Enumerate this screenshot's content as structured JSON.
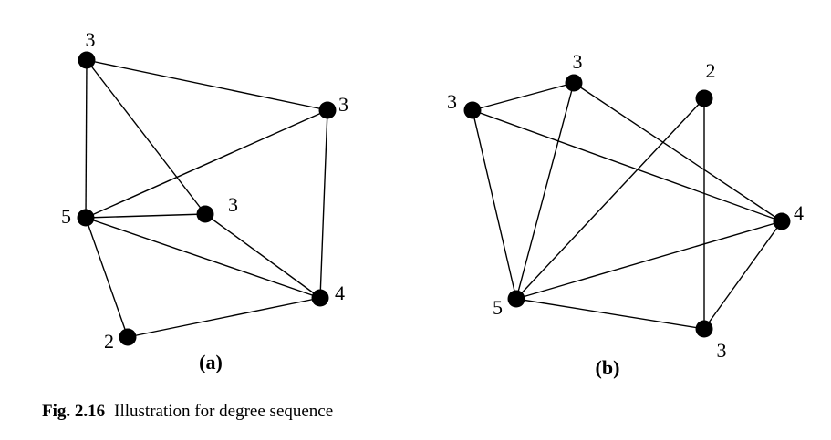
{
  "graphs": [
    {
      "id": "a",
      "label": "(a)",
      "vertices": [
        {
          "id": "a1",
          "degree": "3"
        },
        {
          "id": "a2",
          "degree": "3"
        },
        {
          "id": "a3",
          "degree": "5"
        },
        {
          "id": "a4",
          "degree": "3"
        },
        {
          "id": "a5",
          "degree": "4"
        },
        {
          "id": "a6",
          "degree": "2"
        }
      ],
      "edges": [
        [
          "a1",
          "a2"
        ],
        [
          "a1",
          "a3"
        ],
        [
          "a1",
          "a4"
        ],
        [
          "a2",
          "a3"
        ],
        [
          "a2",
          "a5"
        ],
        [
          "a3",
          "a4"
        ],
        [
          "a3",
          "a5"
        ],
        [
          "a3",
          "a6"
        ],
        [
          "a4",
          "a5"
        ],
        [
          "a5",
          "a6"
        ]
      ]
    },
    {
      "id": "b",
      "label": "(b)",
      "vertices": [
        {
          "id": "b1",
          "degree": "3"
        },
        {
          "id": "b2",
          "degree": "3"
        },
        {
          "id": "b3",
          "degree": "2"
        },
        {
          "id": "b4",
          "degree": "4"
        },
        {
          "id": "b5",
          "degree": "5"
        },
        {
          "id": "b6",
          "degree": "3"
        }
      ],
      "edges": [
        [
          "b1",
          "b2"
        ],
        [
          "b1",
          "b4"
        ],
        [
          "b1",
          "b5"
        ],
        [
          "b2",
          "b5"
        ],
        [
          "b2",
          "b4"
        ],
        [
          "b3",
          "b5"
        ],
        [
          "b3",
          "b6"
        ],
        [
          "b4",
          "b5"
        ],
        [
          "b4",
          "b6"
        ],
        [
          "b5",
          "b6"
        ]
      ]
    }
  ],
  "caption": {
    "figure_number": "Fig. 2.16",
    "text": "Illustration for degree sequence"
  }
}
